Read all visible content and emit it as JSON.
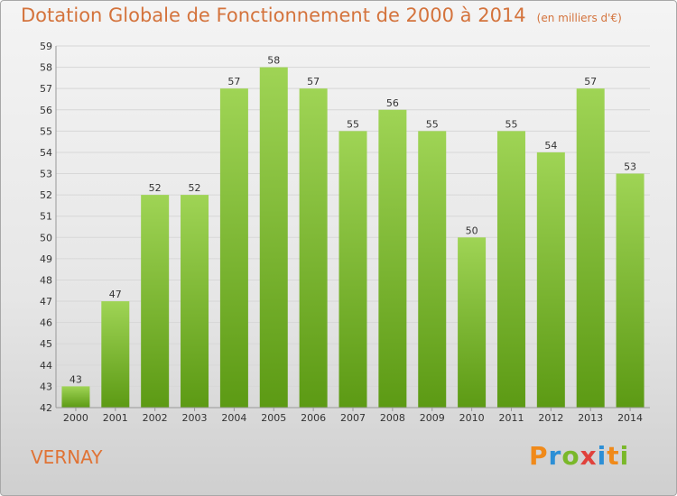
{
  "header": {
    "title": "Dotation Globale de Fonctionnement de 2000 à 2014",
    "unit": "(en milliers d'€)"
  },
  "footer": {
    "commune": "VERNAY",
    "logo_text": "Proxiti",
    "logo_colors": [
      "#f08a1a",
      "#2c8fd6",
      "#7ab82a",
      "#e0423c",
      "#2c8fd6",
      "#f08a1a",
      "#7ab82a"
    ]
  },
  "colors": {
    "title": "#d4733c",
    "bar_light": "#9fd455",
    "bar_dark": "#5c9a14",
    "grid": "#d7d7d7",
    "axis_text": "#333333"
  },
  "chart_data": {
    "type": "bar",
    "title": "Dotation Globale de Fonctionnement de 2000 à 2014",
    "subtitle": "(en milliers d'€)",
    "categories": [
      "2000",
      "2001",
      "2002",
      "2003",
      "2004",
      "2005",
      "2006",
      "2007",
      "2008",
      "2009",
      "2010",
      "2011",
      "2012",
      "2013",
      "2014"
    ],
    "values": [
      43,
      47,
      52,
      52,
      57,
      58,
      57,
      55,
      56,
      55,
      50,
      55,
      54,
      57,
      53
    ],
    "ylim": [
      42,
      59
    ],
    "yticks": [
      42,
      43,
      44,
      45,
      46,
      47,
      48,
      49,
      50,
      51,
      52,
      53,
      54,
      55,
      56,
      57,
      58,
      59
    ],
    "grid": true,
    "data_labels": true
  }
}
